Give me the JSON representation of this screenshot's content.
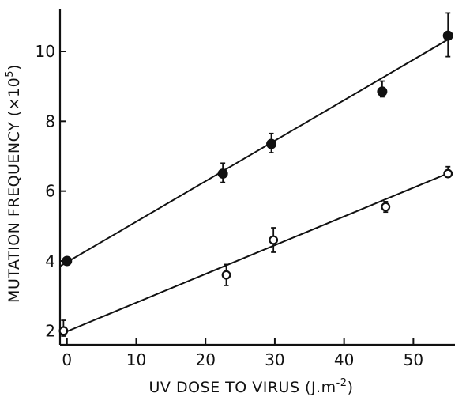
{
  "chart_data": {
    "type": "scatter",
    "xlabel": "UV DOSE TO VIRUS (J.m",
    "xlabel_sup": "-2",
    "xlabel_close": ")",
    "ylabel": "MUTATION FREQUENCY (×10",
    "ylabel_sup": "5",
    "ylabel_close": ")",
    "xlim": [
      -1,
      56
    ],
    "ylim": [
      1.6,
      11.2
    ],
    "xticks": [
      0,
      10,
      20,
      30,
      40,
      50
    ],
    "yticks": [
      2,
      4,
      6,
      8,
      10
    ],
    "grid": false,
    "series": [
      {
        "marker": "filled-circle",
        "points": [
          {
            "x": 0,
            "y": 4.0,
            "err_lo": 0.0,
            "err_hi": 0.0
          },
          {
            "x": 22.5,
            "y": 6.5,
            "err_lo": 0.25,
            "err_hi": 0.3
          },
          {
            "x": 29.5,
            "y": 7.35,
            "err_lo": 0.25,
            "err_hi": 0.3
          },
          {
            "x": 45.5,
            "y": 8.85,
            "err_lo": 0.15,
            "err_hi": 0.3
          },
          {
            "x": 55,
            "y": 10.45,
            "err_lo": 0.6,
            "err_hi": 0.65
          }
        ],
        "fit": {
          "x": [
            -1,
            55.5
          ],
          "y": [
            3.85,
            10.4
          ]
        }
      },
      {
        "marker": "open-circle",
        "points": [
          {
            "x": -0.5,
            "y": 2.0,
            "err_lo": 0.15,
            "err_hi": 0.3
          },
          {
            "x": 23,
            "y": 3.6,
            "err_lo": 0.3,
            "err_hi": 0.3
          },
          {
            "x": 29.8,
            "y": 4.6,
            "err_lo": 0.35,
            "err_hi": 0.35
          },
          {
            "x": 46,
            "y": 5.55,
            "err_lo": 0.15,
            "err_hi": 0.15
          },
          {
            "x": 55,
            "y": 6.5,
            "err_lo": 0.1,
            "err_hi": 0.2
          }
        ],
        "fit": {
          "x": [
            -1,
            55.5
          ],
          "y": [
            1.9,
            6.55
          ]
        }
      }
    ]
  }
}
